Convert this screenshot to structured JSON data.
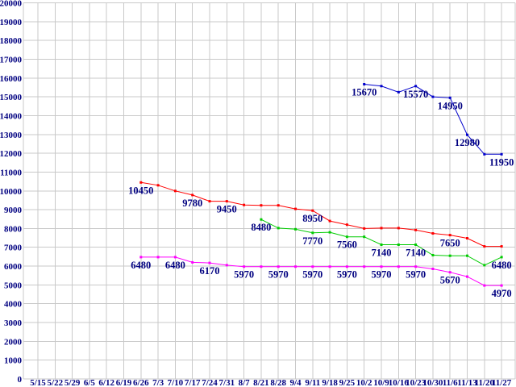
{
  "chart_data": {
    "type": "line",
    "title": "",
    "legend": "none",
    "grid": true,
    "background": "#ffffff",
    "grid_color": "#c9c9c9",
    "label_color": "#000080",
    "y_axis": {
      "min": 0,
      "max": 20000,
      "step": 1000
    },
    "categories": [
      "5/15",
      "5/22",
      "5/29",
      "6/5",
      "6/12",
      "6/19",
      "6/26",
      "7/3",
      "7/10",
      "7/17",
      "7/24",
      "7/31",
      "8/7",
      "8/21",
      "8/28",
      "9/4",
      "9/11",
      "9/18",
      "9/25",
      "10/2",
      "10/9",
      "10/16",
      "10/23",
      "10/30",
      "11/6",
      "11/13",
      "11/20",
      "11/27"
    ],
    "series": [
      {
        "name": "blue-series",
        "color": "#0000cc",
        "values": [
          null,
          null,
          null,
          null,
          null,
          null,
          null,
          null,
          null,
          null,
          null,
          null,
          null,
          null,
          null,
          null,
          null,
          null,
          null,
          15670,
          15570,
          15250,
          15570,
          15000,
          14950,
          12980,
          11950,
          11950
        ]
      },
      {
        "name": "red-series",
        "color": "#ff0000",
        "values": [
          null,
          null,
          null,
          null,
          null,
          null,
          10450,
          10300,
          10000,
          9780,
          9450,
          9450,
          9250,
          9230,
          9230,
          9040,
          8950,
          8400,
          8200,
          8000,
          8020,
          8020,
          7920,
          7740,
          7650,
          7480,
          7050,
          7050
        ]
      },
      {
        "name": "green-series",
        "color": "#00cc00",
        "values": [
          null,
          null,
          null,
          null,
          null,
          null,
          null,
          null,
          null,
          null,
          null,
          null,
          null,
          8480,
          8020,
          7960,
          7770,
          7800,
          7560,
          7560,
          7140,
          7140,
          7140,
          6580,
          6550,
          6550,
          6050,
          6480
        ]
      },
      {
        "name": "magenta-series",
        "color": "#ff00ff",
        "values": [
          null,
          null,
          null,
          null,
          null,
          null,
          6480,
          6480,
          6480,
          6200,
          6170,
          6050,
          5970,
          5970,
          5970,
          5970,
          5970,
          5970,
          5970,
          5970,
          5970,
          5970,
          5970,
          5850,
          5670,
          5440,
          4970,
          4970
        ]
      }
    ],
    "point_labels": [
      {
        "series": 0,
        "index": 19,
        "text": "15670"
      },
      {
        "series": 0,
        "index": 22,
        "text": "15570"
      },
      {
        "series": 0,
        "index": 24,
        "text": "14950"
      },
      {
        "series": 0,
        "index": 25,
        "text": "12980"
      },
      {
        "series": 0,
        "index": 27,
        "text": "11950"
      },
      {
        "series": 1,
        "index": 6,
        "text": "10450"
      },
      {
        "series": 1,
        "index": 9,
        "text": "9780"
      },
      {
        "series": 1,
        "index": 11,
        "text": "9450"
      },
      {
        "series": 1,
        "index": 16,
        "text": "8950"
      },
      {
        "series": 1,
        "index": 24,
        "text": "7650"
      },
      {
        "series": 2,
        "index": 13,
        "text": "8480"
      },
      {
        "series": 2,
        "index": 16,
        "text": "7770"
      },
      {
        "series": 2,
        "index": 18,
        "text": "7560"
      },
      {
        "series": 2,
        "index": 20,
        "text": "7140"
      },
      {
        "series": 2,
        "index": 22,
        "text": "7140"
      },
      {
        "series": 2,
        "index": 27,
        "text": "6480"
      },
      {
        "series": 3,
        "index": 6,
        "text": "6480"
      },
      {
        "series": 3,
        "index": 8,
        "text": "6480"
      },
      {
        "series": 3,
        "index": 10,
        "text": "6170"
      },
      {
        "series": 3,
        "index": 12,
        "text": "5970"
      },
      {
        "series": 3,
        "index": 14,
        "text": "5970"
      },
      {
        "series": 3,
        "index": 16,
        "text": "5970"
      },
      {
        "series": 3,
        "index": 18,
        "text": "5970"
      },
      {
        "series": 3,
        "index": 20,
        "text": "5970"
      },
      {
        "series": 3,
        "index": 22,
        "text": "5970"
      },
      {
        "series": 3,
        "index": 24,
        "text": "5670"
      },
      {
        "series": 3,
        "index": 27,
        "text": "4970"
      }
    ]
  }
}
